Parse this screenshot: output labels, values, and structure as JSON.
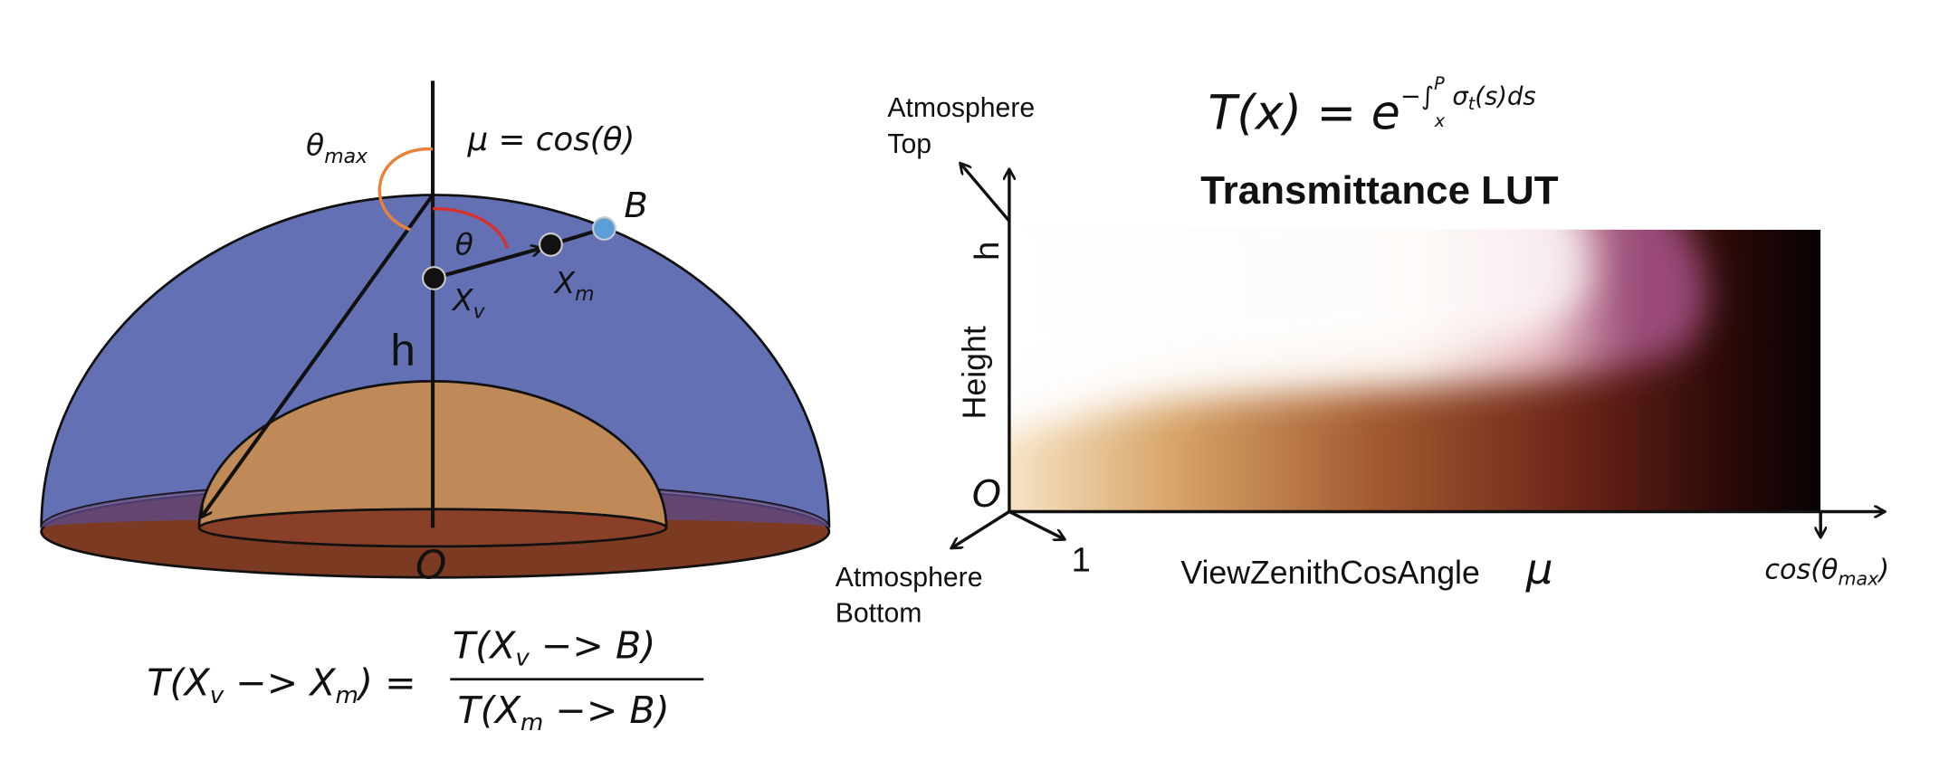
{
  "hemisphere": {
    "theta_max": {
      "symbol": "θ",
      "subscript": "max"
    },
    "mu_definition": "μ = cos(θ)",
    "theta": "θ",
    "point_b": "B",
    "x_v": {
      "symbol": "X",
      "subscript": "v"
    },
    "x_m": {
      "symbol": "X",
      "subscript": "m"
    },
    "height": "h",
    "origin": "O"
  },
  "relation": {
    "lhs": [
      "T(X",
      "v",
      " −> X",
      "m",
      ") ="
    ],
    "numerator": [
      "T(X",
      "v",
      " −> B)"
    ],
    "denominator": [
      "T(X",
      "m",
      " −> B)"
    ]
  },
  "lut": {
    "title": "Transmittance LUT",
    "formula": {
      "lhs": "T(x) = e",
      "exponent": "−∫",
      "lower": "x",
      "upper": "P",
      "integrand": "σ",
      "integrand_sub": "t",
      "tail": "(s)ds"
    },
    "top_label": [
      "Atmosphere",
      "Top"
    ],
    "bottom_label": [
      "Atmosphere",
      "Bottom"
    ],
    "h_axis": "h",
    "y_axis_label": "Height",
    "origin": "O",
    "one": "1",
    "x_axis_label": "ViewZenithCosAngle",
    "mu": "μ",
    "x_end": {
      "prefix": "cos(θ",
      "subscript": "max",
      "suffix": ")"
    }
  }
}
